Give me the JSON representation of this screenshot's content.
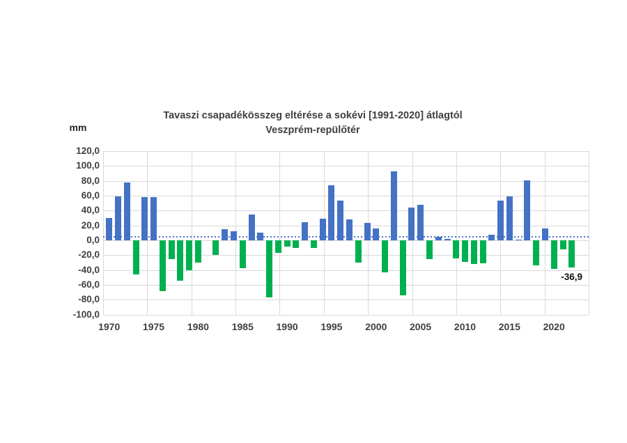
{
  "chart_data": {
    "type": "bar",
    "title_line1": "Tavaszi csapadékösszeg eltérése a sokévi [1991-2020] átlagtól",
    "title_line2": "Veszprém-repülőtér",
    "unit_label": "mm",
    "x": [
      1970,
      1971,
      1972,
      1973,
      1974,
      1975,
      1976,
      1977,
      1978,
      1979,
      1980,
      1981,
      1982,
      1983,
      1984,
      1985,
      1986,
      1987,
      1988,
      1989,
      1990,
      1991,
      1992,
      1993,
      1994,
      1995,
      1996,
      1997,
      1998,
      1999,
      2000,
      2001,
      2002,
      2003,
      2004,
      2005,
      2006,
      2007,
      2008,
      2009,
      2010,
      2011,
      2012,
      2013,
      2014,
      2015,
      2016,
      2017,
      2018,
      2019,
      2020,
      2021,
      2022
    ],
    "values": [
      30,
      59,
      78,
      -46,
      58,
      58,
      -68,
      -25,
      -54,
      -40,
      -30,
      0,
      -20,
      15,
      12,
      -37,
      35,
      10,
      -77,
      -17,
      -8,
      -10,
      24,
      -10,
      29,
      74,
      53,
      28,
      -30,
      23,
      16,
      -43,
      93,
      -74,
      44,
      48,
      -25,
      5,
      2,
      -24,
      -29,
      -32,
      -31,
      8,
      53,
      59,
      1,
      81,
      -34,
      16,
      -38,
      -12,
      -36.9
    ],
    "ylim": [
      -100,
      120
    ],
    "ytick_values": [
      120,
      100,
      80,
      60,
      40,
      20,
      0,
      -20,
      -40,
      -60,
      -80,
      -100
    ],
    "ytick_labels": [
      "120,0",
      "100,0",
      "80,0",
      "60,0",
      "40,0",
      "20,0",
      "0,0",
      "-20,0",
      "-40,0",
      "-60,0",
      "-80,0",
      "-100,0"
    ],
    "xtick_years": [
      1970,
      1975,
      1980,
      1985,
      1990,
      1995,
      2000,
      2005,
      2010,
      2015,
      2020
    ],
    "grid": true,
    "legend": "none",
    "positive_color": "#4472C4",
    "negative_color": "#00B050",
    "grid_color": "#d9d9d9",
    "text_color": "#404040",
    "background_color": "#ffffff",
    "reference_line": {
      "value": 4.5,
      "style": "dotted",
      "color": "#4472C4"
    },
    "annotation": {
      "year": 2022,
      "label": "-36,9"
    }
  }
}
